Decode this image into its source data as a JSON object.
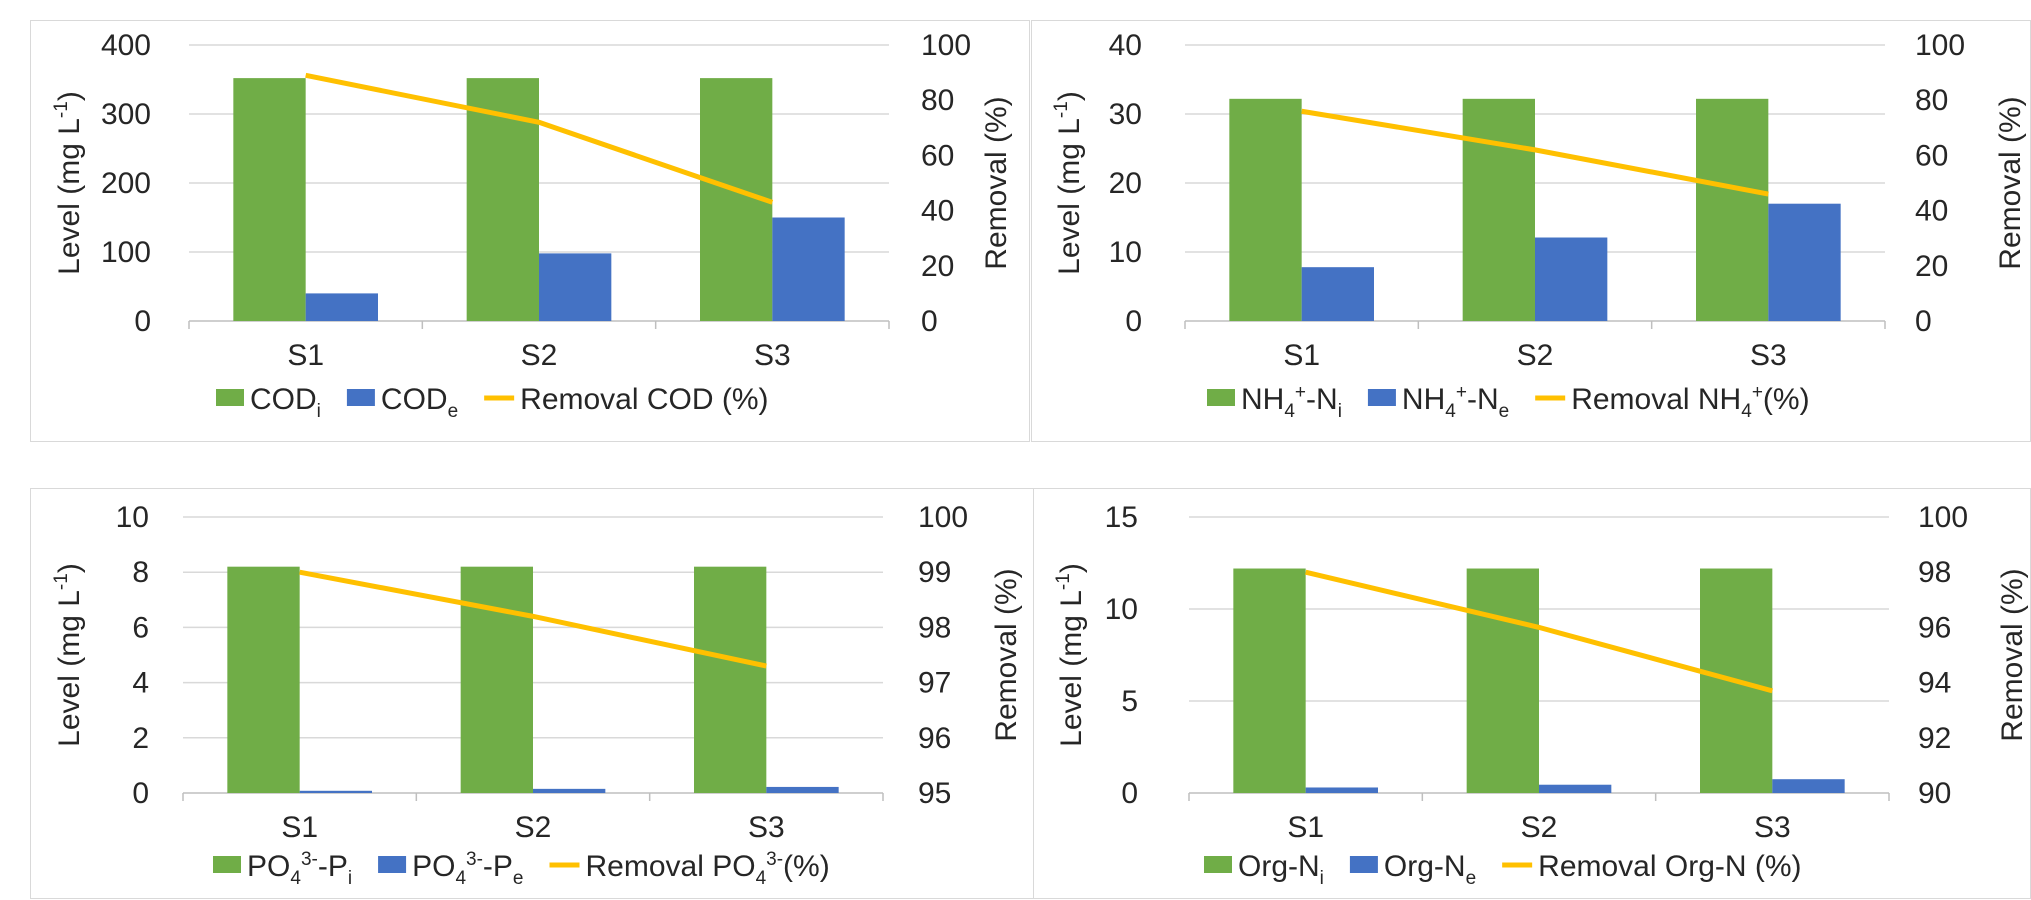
{
  "chart_data": [
    {
      "type": "bar",
      "categories": [
        "S1",
        "S2",
        "S3"
      ],
      "ylabel": "Level (mg L-1)",
      "y2label": "Removal (%)",
      "ylim": [
        0,
        400
      ],
      "yticks": [
        0,
        100,
        200,
        300,
        400
      ],
      "y2lim": [
        0,
        100
      ],
      "y2ticks": [
        0,
        20,
        40,
        60,
        80,
        100
      ],
      "grid": true,
      "legend_position": "bottom",
      "series": [
        {
          "name": "CODi",
          "legend": {
            "main": "COD",
            "sub": "i"
          },
          "kind": "bar",
          "axis": "left",
          "color": "#70ad47",
          "values": [
            352,
            352,
            352
          ]
        },
        {
          "name": "CODe",
          "legend": {
            "main": "COD",
            "sub": "e"
          },
          "kind": "bar",
          "axis": "left",
          "color": "#4472c4",
          "values": [
            40,
            98,
            150
          ]
        },
        {
          "name": "Removal COD (%)",
          "legend": {
            "main": "Removal COD (%)"
          },
          "kind": "line",
          "axis": "right",
          "color": "#ffc000",
          "values": [
            89,
            72,
            43
          ]
        }
      ]
    },
    {
      "type": "bar",
      "categories": [
        "S1",
        "S2",
        "S3"
      ],
      "ylabel": "Level (mg L-1)",
      "y2label": "Removal (%)",
      "ylim": [
        0,
        40
      ],
      "yticks": [
        0,
        10,
        20,
        30,
        40
      ],
      "y2lim": [
        0,
        100
      ],
      "y2ticks": [
        0,
        20,
        40,
        60,
        80,
        100
      ],
      "grid": true,
      "legend_position": "bottom",
      "series": [
        {
          "name": "NH4+-Ni",
          "legend": {
            "main": "NH",
            "sub1": "4",
            "sup1": "+",
            "main2": "-N",
            "sub2": "i"
          },
          "kind": "bar",
          "axis": "left",
          "color": "#70ad47",
          "values": [
            32.2,
            32.2,
            32.2
          ]
        },
        {
          "name": "NH4+-Ne",
          "legend": {
            "main": "NH",
            "sub1": "4",
            "sup1": "+",
            "main2": "-N",
            "sub2": "e"
          },
          "kind": "bar",
          "axis": "left",
          "color": "#4472c4",
          "values": [
            7.8,
            12.1,
            17
          ]
        },
        {
          "name": "Removal NH4+(%)",
          "legend": {
            "main": "Removal NH",
            "sub1": "4",
            "sup1": "+",
            "main2": "(%)"
          },
          "kind": "line",
          "axis": "right",
          "color": "#ffc000",
          "values": [
            76,
            62,
            46
          ]
        }
      ]
    },
    {
      "type": "bar",
      "categories": [
        "S1",
        "S2",
        "S3"
      ],
      "ylabel": "Level (mg L-1)",
      "y2label": "Removal (%)",
      "ylim": [
        0,
        10
      ],
      "yticks": [
        0,
        2,
        4,
        6,
        8,
        10
      ],
      "y2lim": [
        95,
        100
      ],
      "y2ticks": [
        95,
        96,
        97,
        98,
        99,
        100
      ],
      "grid": true,
      "legend_position": "bottom",
      "series": [
        {
          "name": "PO43--Pi",
          "legend": {
            "main": "PO",
            "sub1": "4",
            "sup1": "3-",
            "main2": "-P",
            "sub2": "i"
          },
          "kind": "bar",
          "axis": "left",
          "color": "#70ad47",
          "values": [
            8.2,
            8.2,
            8.2
          ]
        },
        {
          "name": "PO43--Pe",
          "legend": {
            "main": "PO",
            "sub1": "4",
            "sup1": "3-",
            "main2": "-P",
            "sub2": "e"
          },
          "kind": "bar",
          "axis": "left",
          "color": "#4472c4",
          "values": [
            0.08,
            0.15,
            0.22
          ]
        },
        {
          "name": "Removal PO43-(%)",
          "legend": {
            "main": "Removal PO",
            "sub1": "4",
            "sup1": "3-",
            "main2": "(%)"
          },
          "kind": "line",
          "axis": "right",
          "color": "#ffc000",
          "values": [
            99.0,
            98.2,
            97.3
          ]
        }
      ]
    },
    {
      "type": "bar",
      "categories": [
        "S1",
        "S2",
        "S3"
      ],
      "ylabel": "Level (mg L-1)",
      "y2label": "Removal (%)",
      "ylim": [
        0,
        15
      ],
      "yticks": [
        0,
        5,
        10,
        15
      ],
      "y2lim": [
        90,
        100
      ],
      "y2ticks": [
        90,
        92,
        94,
        96,
        98,
        100
      ],
      "grid": true,
      "legend_position": "bottom",
      "series": [
        {
          "name": "Org-Ni",
          "legend": {
            "main": "Org-N",
            "sub": "i"
          },
          "kind": "bar",
          "axis": "left",
          "color": "#70ad47",
          "values": [
            12.2,
            12.2,
            12.2
          ]
        },
        {
          "name": "Org-Ne",
          "legend": {
            "main": "Org-N",
            "sub": "e"
          },
          "kind": "bar",
          "axis": "left",
          "color": "#4472c4",
          "values": [
            0.3,
            0.45,
            0.75
          ]
        },
        {
          "name": "Removal Org-N (%)",
          "legend": {
            "main": "Removal Org-N (%)"
          },
          "kind": "line",
          "axis": "right",
          "color": "#ffc000",
          "values": [
            98,
            96,
            93.7
          ]
        }
      ]
    }
  ]
}
